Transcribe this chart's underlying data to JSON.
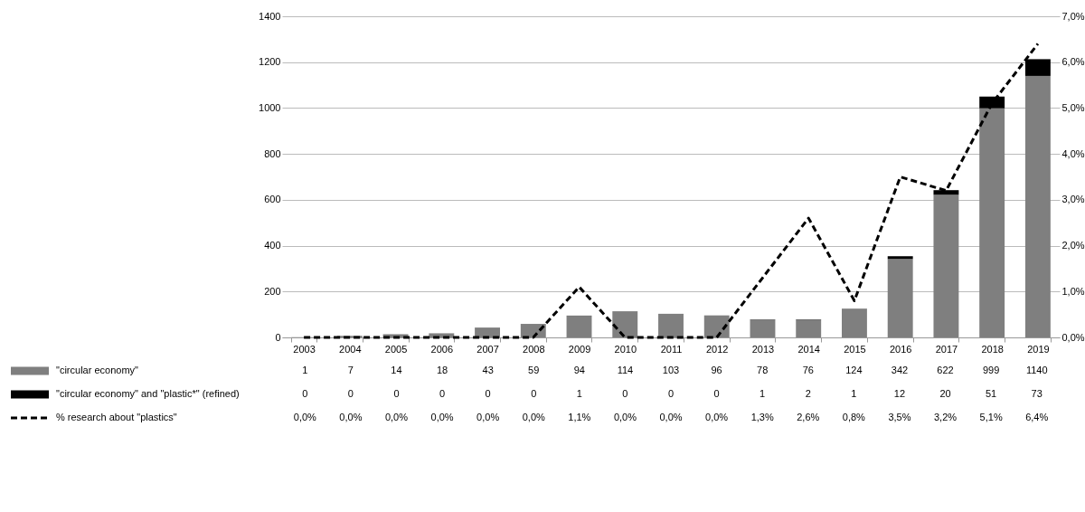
{
  "chart_data": {
    "type": "bar",
    "stacked": true,
    "categories": [
      "2003",
      "2004",
      "2005",
      "2006",
      "2007",
      "2008",
      "2009",
      "2010",
      "2011",
      "2012",
      "2013",
      "2014",
      "2015",
      "2016",
      "2017",
      "2018",
      "2019"
    ],
    "series": [
      {
        "name": "\"circular economy\"",
        "color": "#7f7f7f",
        "values": [
          1,
          7,
          14,
          18,
          43,
          59,
          94,
          114,
          103,
          96,
          78,
          76,
          124,
          342,
          622,
          999,
          1140
        ],
        "value_labels": [
          "1",
          "7",
          "14",
          "18",
          "43",
          "59",
          "94",
          "114",
          "103",
          "96",
          "78",
          "76",
          "124",
          "342",
          "622",
          "999",
          "1140"
        ]
      },
      {
        "name": "\"circular economy\" and \"plastic*\" (refined)",
        "color": "#000000",
        "values": [
          0,
          0,
          0,
          0,
          0,
          0,
          1,
          0,
          0,
          0,
          1,
          2,
          1,
          12,
          20,
          51,
          73
        ],
        "value_labels": [
          "0",
          "0",
          "0",
          "0",
          "0",
          "0",
          "1",
          "0",
          "0",
          "0",
          "1",
          "2",
          "1",
          "12",
          "20",
          "51",
          "73"
        ]
      },
      {
        "name": "% research about \"plastics\"",
        "type": "line",
        "axis": "y2",
        "color": "#000000",
        "line_style": "dashed",
        "values": [
          0,
          0,
          0,
          0,
          0,
          0,
          1.1,
          0,
          0,
          0,
          1.3,
          2.6,
          0.8,
          3.5,
          3.2,
          5.1,
          6.4
        ],
        "value_labels": [
          "0,0%",
          "0,0%",
          "0,0%",
          "0,0%",
          "0,0%",
          "0,0%",
          "1,1%",
          "0,0%",
          "0,0%",
          "0,0%",
          "1,3%",
          "2,6%",
          "0,8%",
          "3,5%",
          "3,2%",
          "5,1%",
          "6,4%"
        ]
      }
    ],
    "ylim": [
      0,
      1400
    ],
    "yticks": [
      0,
      200,
      400,
      600,
      800,
      1000,
      1200,
      1400
    ],
    "y2lim": [
      0,
      7
    ],
    "y2ticks": [
      {
        "value": 0,
        "label": "0,0%"
      },
      {
        "value": 1,
        "label": "1,0%"
      },
      {
        "value": 2,
        "label": "2,0%"
      },
      {
        "value": 3,
        "label": "3,0%"
      },
      {
        "value": 4,
        "label": "4,0%"
      },
      {
        "value": 5,
        "label": "5,0%"
      },
      {
        "value": 6,
        "label": "6,0%"
      },
      {
        "value": 7,
        "label": "7,0%"
      }
    ],
    "grid": "y",
    "legend": "bottom"
  }
}
